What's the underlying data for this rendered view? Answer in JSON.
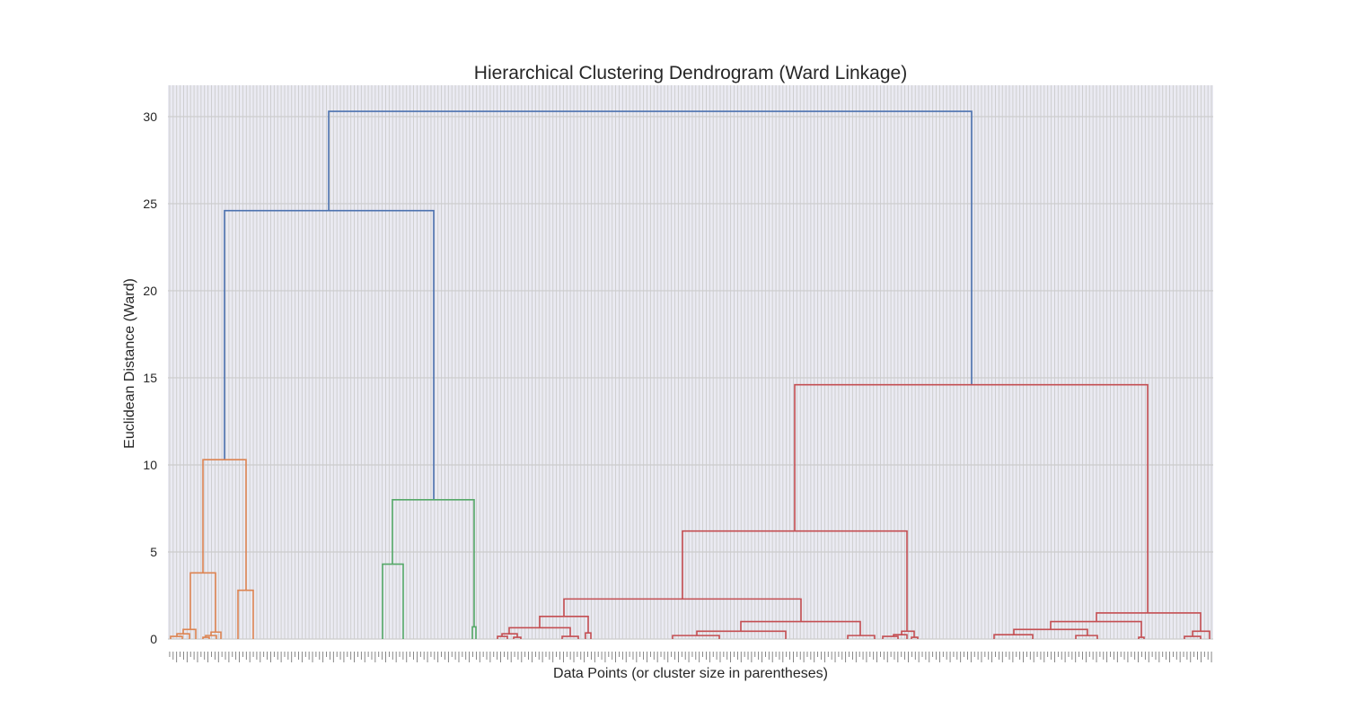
{
  "chart_data": {
    "type": "dendrogram",
    "title": "Hierarchical Clustering Dendrogram (Ward Linkage)",
    "xlabel": "Data Points (or cluster size in parentheses)",
    "ylabel": "Euclidean Distance (Ward)",
    "ylim": [
      0,
      31.8
    ],
    "yticks": [
      0,
      5,
      10,
      15,
      20,
      25,
      30
    ],
    "grid": true,
    "leaf_count": 300,
    "colors": {
      "orange": "#dd8452",
      "green": "#55a868",
      "red": "#c44e52",
      "blue": "#4c72b0",
      "grid": "#cccccc",
      "background": "#eaeaf2"
    },
    "links": [
      {
        "x": [
          366,
          366,
          1082,
          1082
        ],
        "y": [
          24.6,
          30.3,
          30.3,
          14.6
        ],
        "color": "blue"
      },
      {
        "x": [
          250,
          250,
          483,
          483
        ],
        "y": [
          10.3,
          24.6,
          24.6,
          8.0
        ],
        "color": "blue"
      },
      {
        "x": [
          885,
          885,
          1278,
          1278
        ],
        "y": [
          6.2,
          14.6,
          14.6,
          1.5
        ],
        "color": "red"
      },
      {
        "x": [
          226,
          226,
          274,
          274
        ],
        "y": [
          3.8,
          10.3,
          10.3,
          2.8
        ],
        "color": "orange"
      },
      {
        "x": [
          212,
          212,
          240,
          240
        ],
        "y": [
          0.55,
          3.8,
          3.8,
          0.4
        ],
        "color": "orange"
      },
      {
        "x": [
          265,
          265,
          282,
          282
        ],
        "y": [
          0,
          2.8,
          2.8,
          0
        ],
        "color": "orange"
      },
      {
        "x": [
          204,
          204,
          218,
          218
        ],
        "y": [
          0.3,
          0.55,
          0.55,
          0
        ],
        "color": "orange"
      },
      {
        "x": [
          197,
          197,
          211,
          211
        ],
        "y": [
          0.15,
          0.3,
          0.3,
          0
        ],
        "color": "orange"
      },
      {
        "x": [
          190,
          190,
          203,
          203
        ],
        "y": [
          0,
          0.15,
          0.15,
          0
        ],
        "color": "orange"
      },
      {
        "x": [
          235,
          235,
          246,
          246
        ],
        "y": [
          0.2,
          0.4,
          0.4,
          0
        ],
        "color": "orange"
      },
      {
        "x": [
          229,
          229,
          241,
          241
        ],
        "y": [
          0.1,
          0.2,
          0.2,
          0
        ],
        "color": "orange"
      },
      {
        "x": [
          226,
          226,
          233,
          233
        ],
        "y": [
          0,
          0.1,
          0.1,
          0
        ],
        "color": "orange"
      },
      {
        "x": [
          437,
          437,
          528,
          528
        ],
        "y": [
          4.3,
          8.0,
          8.0,
          0.7
        ],
        "color": "green"
      },
      {
        "x": [
          426,
          426,
          449,
          449
        ],
        "y": [
          0,
          4.3,
          4.3,
          0
        ],
        "color": "green"
      },
      {
        "x": [
          526,
          526,
          530,
          530
        ],
        "y": [
          0,
          0.7,
          0.7,
          0
        ],
        "color": "green"
      },
      {
        "x": [
          760,
          760,
          1010,
          1010
        ],
        "y": [
          2.3,
          6.2,
          6.2,
          0.45
        ],
        "color": "red"
      },
      {
        "x": [
          628,
          628,
          892,
          892
        ],
        "y": [
          1.3,
          2.3,
          2.3,
          1.0
        ],
        "color": "red"
      },
      {
        "x": [
          601,
          601,
          655,
          655
        ],
        "y": [
          0.65,
          1.3,
          1.3,
          0.35
        ],
        "color": "red"
      },
      {
        "x": [
          567,
          567,
          635,
          635
        ],
        "y": [
          0.3,
          0.65,
          0.65,
          0.15
        ],
        "color": "red"
      },
      {
        "x": [
          559,
          559,
          576,
          576
        ],
        "y": [
          0.15,
          0.3,
          0.3,
          0.1
        ],
        "color": "red"
      },
      {
        "x": [
          554,
          554,
          565,
          565
        ],
        "y": [
          0,
          0.15,
          0.15,
          0
        ],
        "color": "red"
      },
      {
        "x": [
          572,
          572,
          580,
          580
        ],
        "y": [
          0,
          0.1,
          0.1,
          0
        ],
        "color": "red"
      },
      {
        "x": [
          626,
          626,
          644,
          644
        ],
        "y": [
          0,
          0.15,
          0.15,
          0
        ],
        "color": "red"
      },
      {
        "x": [
          652,
          652,
          658,
          658
        ],
        "y": [
          0,
          0.35,
          0.35,
          0
        ],
        "color": "red"
      },
      {
        "x": [
          825,
          825,
          958,
          958
        ],
        "y": [
          0.45,
          1.0,
          1.0,
          0.2
        ],
        "color": "red"
      },
      {
        "x": [
          776,
          776,
          875,
          875
        ],
        "y": [
          0.2,
          0.45,
          0.45,
          0
        ],
        "color": "red"
      },
      {
        "x": [
          749,
          749,
          801,
          801
        ],
        "y": [
          0,
          0.2,
          0.2,
          0
        ],
        "color": "red"
      },
      {
        "x": [
          944,
          944,
          974,
          974
        ],
        "y": [
          0,
          0.2,
          0.2,
          0
        ],
        "color": "red"
      },
      {
        "x": [
          1004,
          1004,
          1018,
          1018
        ],
        "y": [
          0.25,
          0.45,
          0.45,
          0.1
        ],
        "color": "red"
      },
      {
        "x": [
          995,
          995,
          1010,
          1010
        ],
        "y": [
          0.15,
          0.25,
          0.25,
          0
        ],
        "color": "red"
      },
      {
        "x": [
          983,
          983,
          1000,
          1000
        ],
        "y": [
          0,
          0.15,
          0.15,
          0
        ],
        "color": "red"
      },
      {
        "x": [
          1015,
          1015,
          1022,
          1022
        ],
        "y": [
          0,
          0.1,
          0.1,
          0
        ],
        "color": "red"
      },
      {
        "x": [
          1221,
          1221,
          1337,
          1337
        ],
        "y": [
          1.0,
          1.5,
          1.5,
          0.45
        ],
        "color": "red"
      },
      {
        "x": [
          1170,
          1170,
          1271,
          1271
        ],
        "y": [
          0.55,
          1.0,
          1.0,
          0.1
        ],
        "color": "red"
      },
      {
        "x": [
          1129,
          1129,
          1211,
          1211
        ],
        "y": [
          0.25,
          0.55,
          0.55,
          0.2
        ],
        "color": "red"
      },
      {
        "x": [
          1107,
          1107,
          1150,
          1150
        ],
        "y": [
          0,
          0.25,
          0.25,
          0
        ],
        "color": "red"
      },
      {
        "x": [
          1198,
          1198,
          1222,
          1222
        ],
        "y": [
          0,
          0.2,
          0.2,
          0
        ],
        "color": "red"
      },
      {
        "x": [
          1268,
          1268,
          1274,
          1274
        ],
        "y": [
          0,
          0.1,
          0.1,
          0
        ],
        "color": "red"
      },
      {
        "x": [
          1328,
          1328,
          1347,
          1347
        ],
        "y": [
          0.15,
          0.45,
          0.45,
          0
        ],
        "color": "red"
      },
      {
        "x": [
          1319,
          1319,
          1337,
          1337
        ],
        "y": [
          0,
          0.15,
          0.15,
          0
        ],
        "color": "red"
      }
    ]
  }
}
